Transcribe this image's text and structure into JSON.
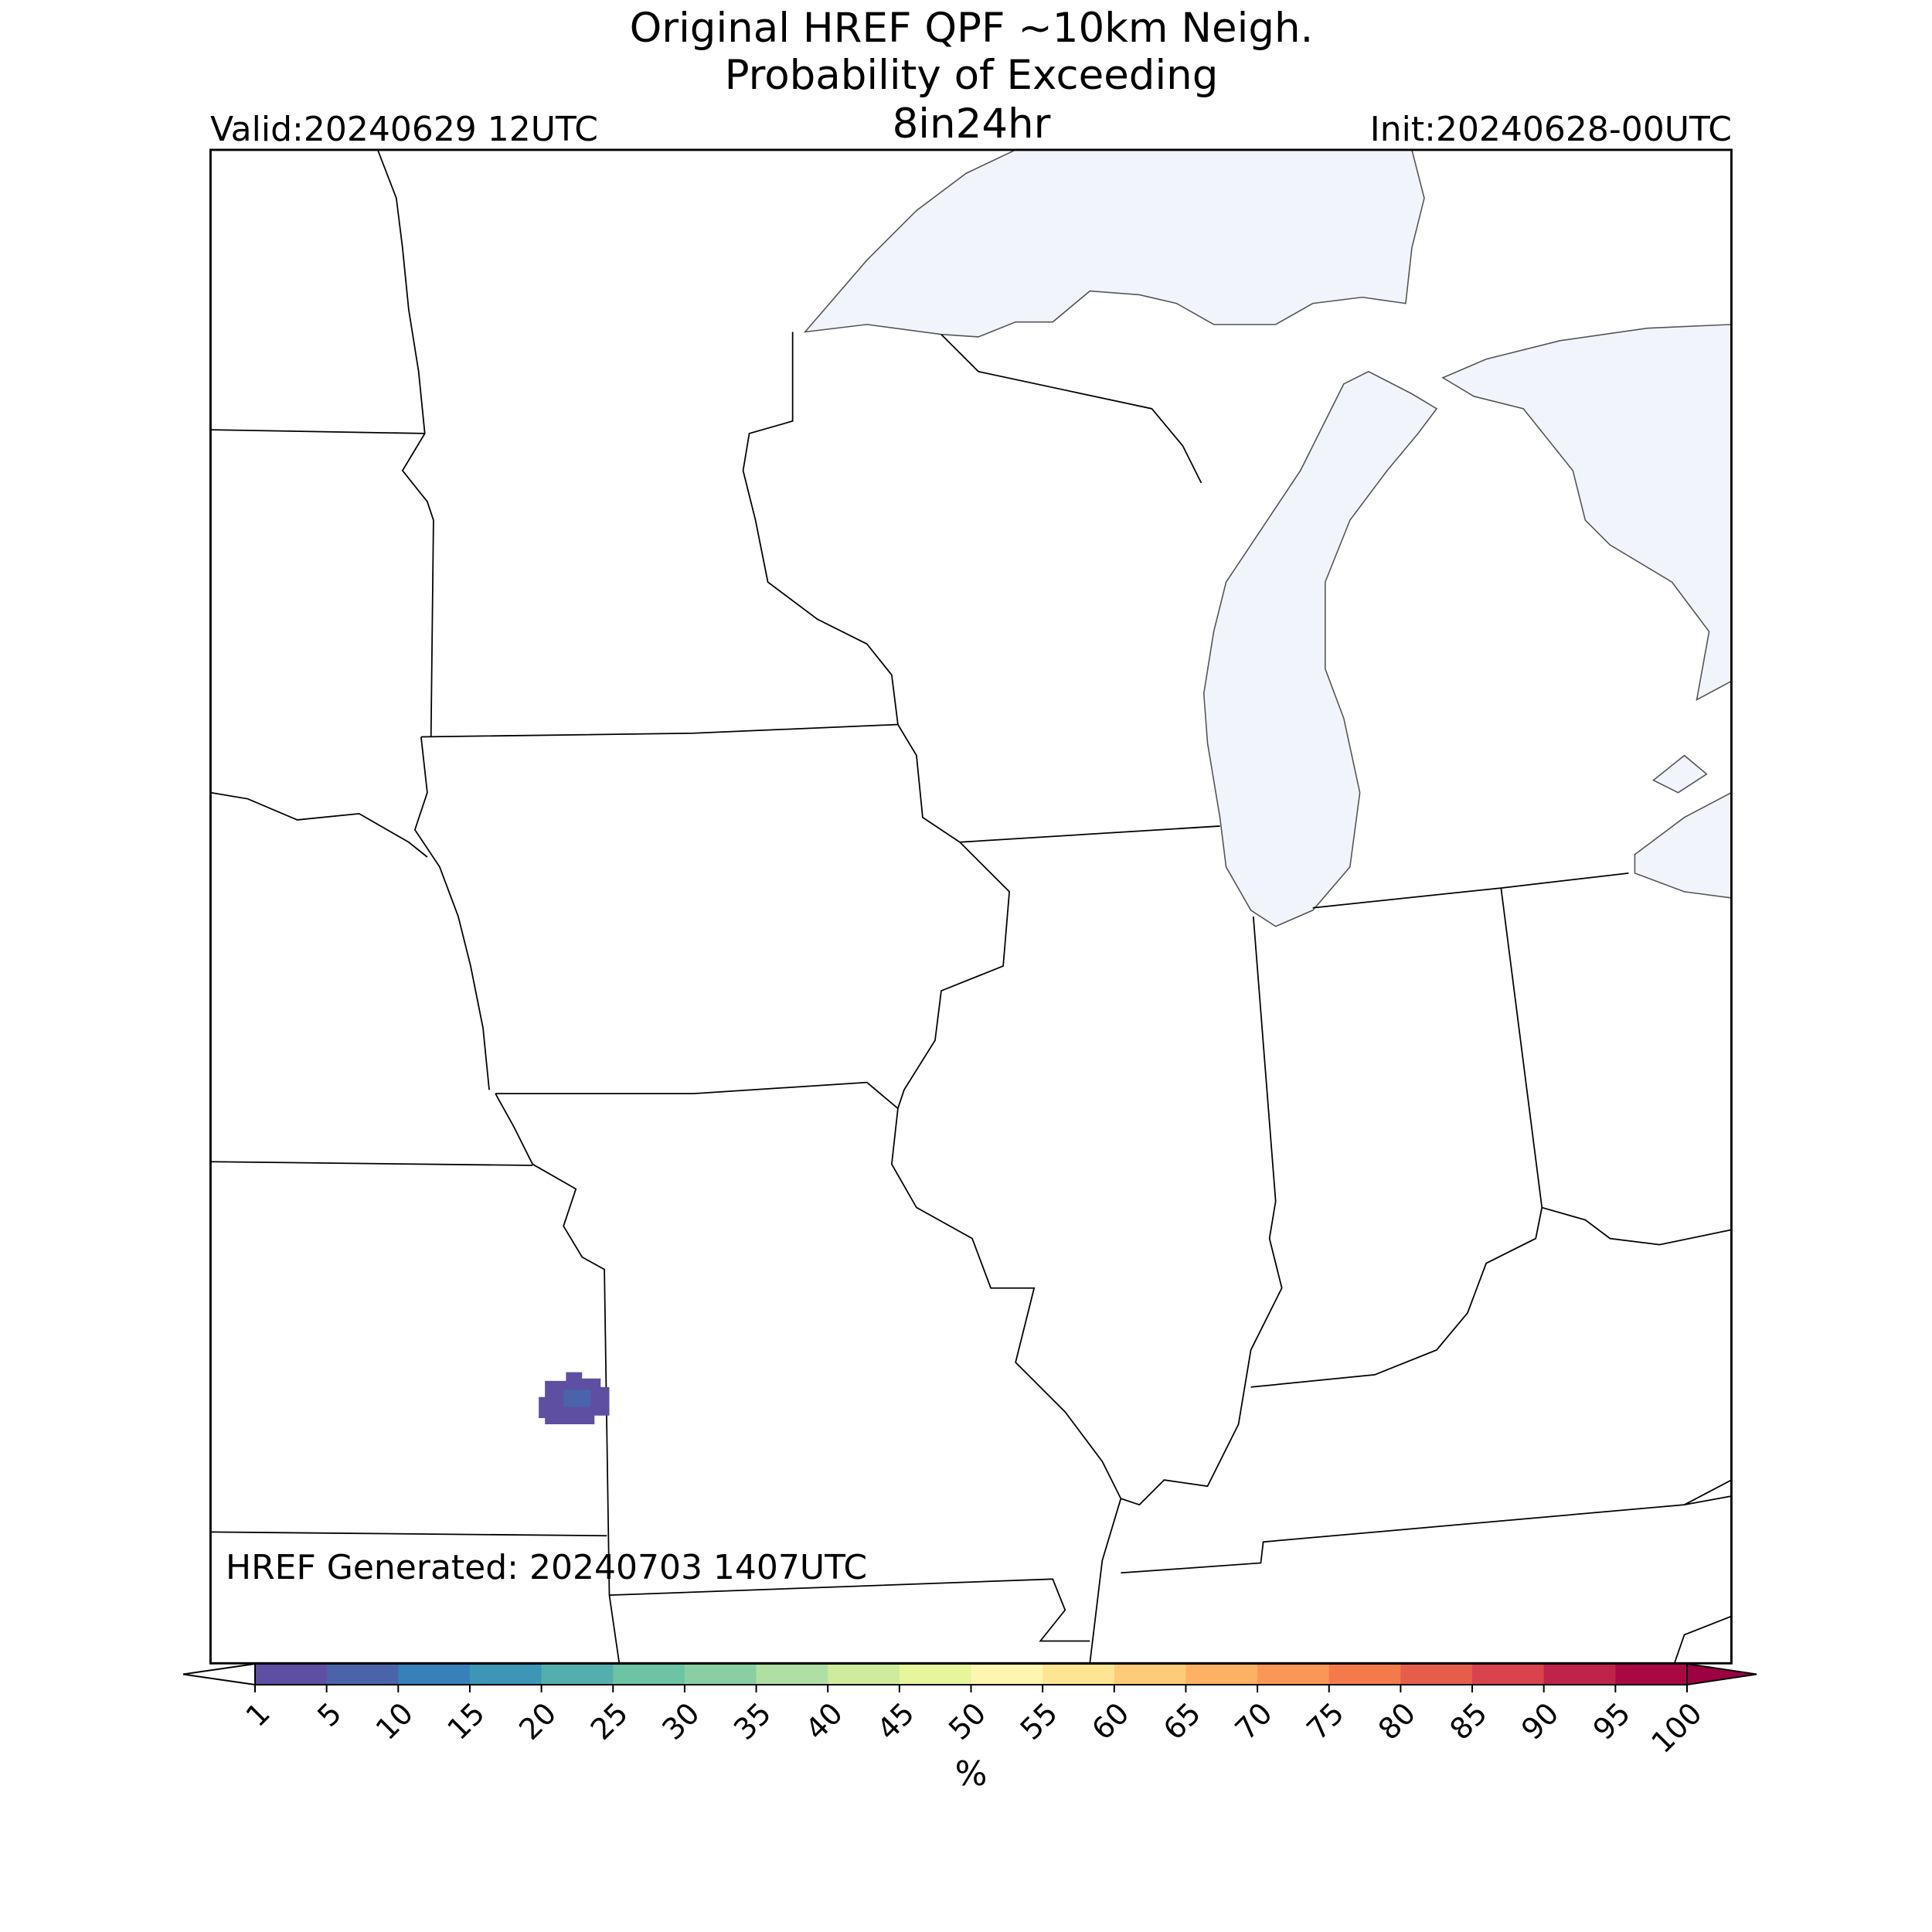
{
  "header": {
    "title": [
      "Original HREF QPF ~10km Neigh.",
      "Probability of Exceeding",
      "8in24hr"
    ],
    "valid": "Valid:20240629 12UTC",
    "init": "Init:20240628-00UTC"
  },
  "note": "HREF Generated: 20240703 1407UTC",
  "colorbar": {
    "label": "%",
    "ticks": [
      1,
      5,
      10,
      15,
      20,
      25,
      30,
      35,
      40,
      45,
      50,
      55,
      60,
      65,
      70,
      75,
      80,
      85,
      90,
      95,
      100
    ],
    "colors": [
      "#5e4fa2",
      "#4a63ab",
      "#3880b9",
      "#3d95b8",
      "#54aead",
      "#6cc4a4",
      "#8acfa4",
      "#b0dfa3",
      "#cfeb9d",
      "#e7f59b",
      "#fdf6b0",
      "#fee593",
      "#fecb79",
      "#fdb163",
      "#fa9656",
      "#f47a4b",
      "#e65e4a",
      "#d8434e",
      "#be2449",
      "#a90843"
    ],
    "under_color": "#ffffff",
    "over_color": "#9e0142"
  }
}
